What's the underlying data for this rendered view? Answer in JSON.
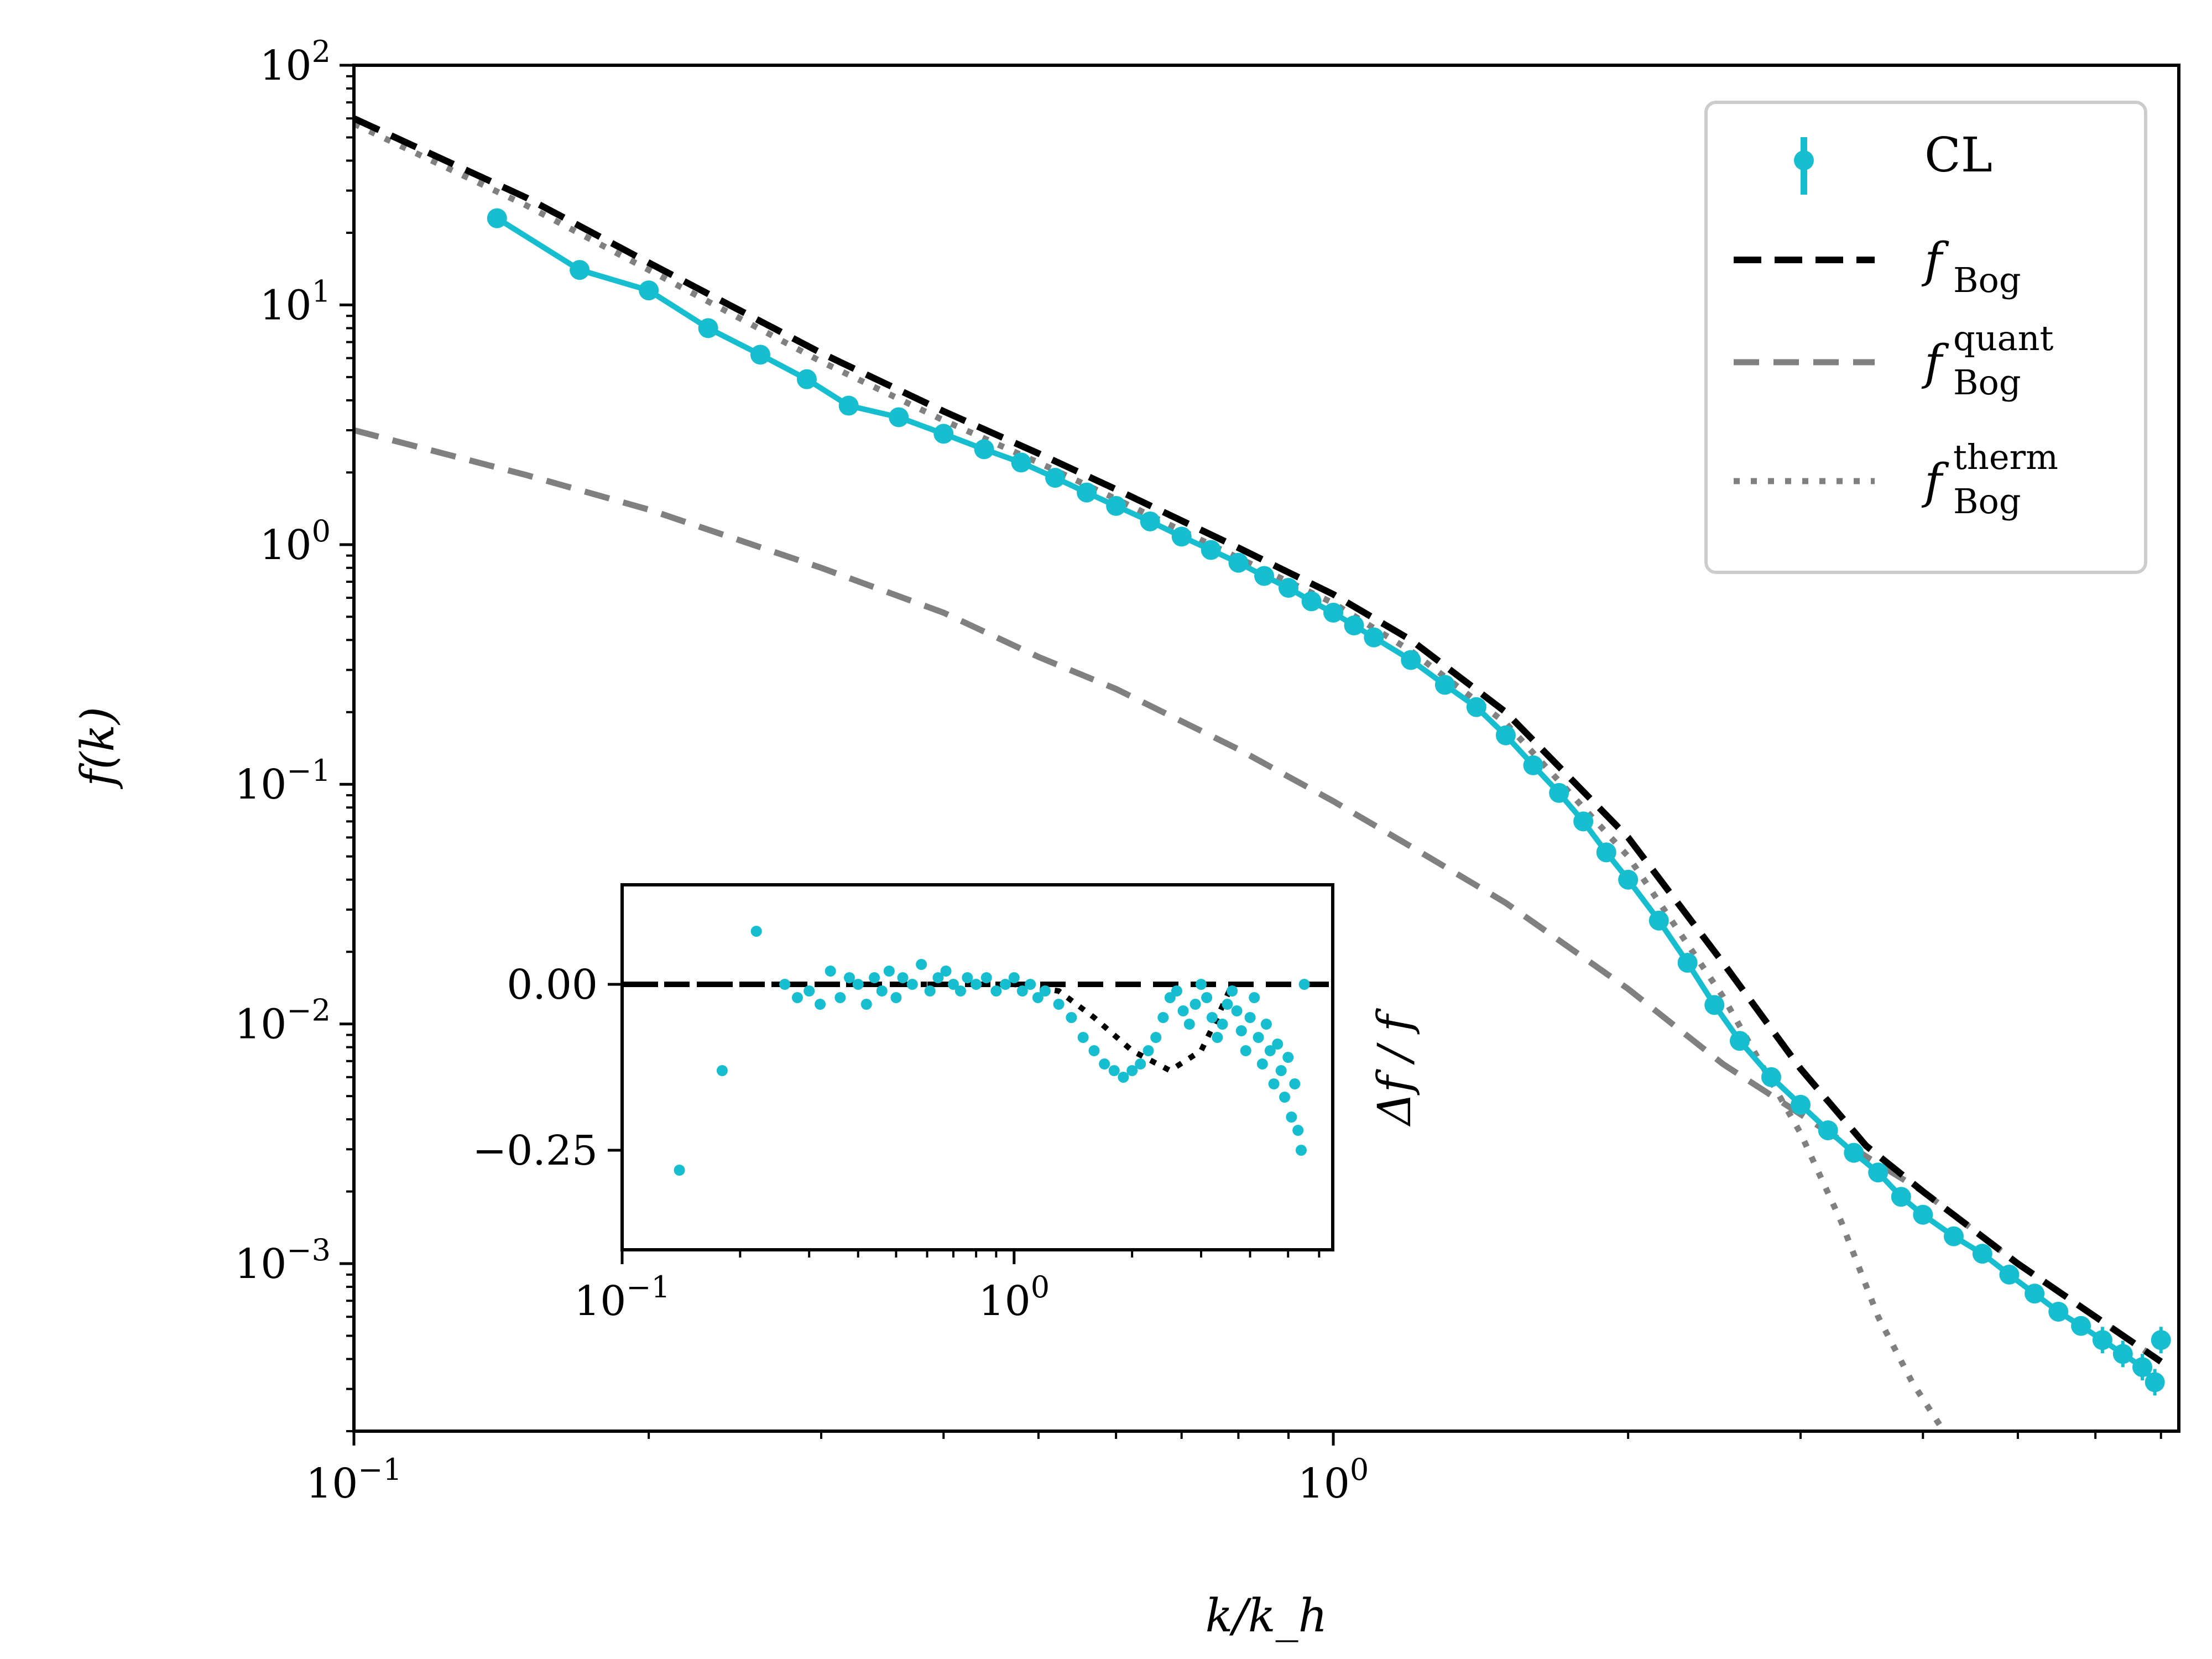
{
  "chart_data": {
    "type": "line",
    "title": "",
    "xlabel": "k/k_h",
    "ylabel": "f(k)",
    "x_scale": "log",
    "y_scale": "log",
    "xlim": [
      0.1,
      7.3
    ],
    "ylim": [
      0.0002,
      100
    ],
    "x_ticks": [
      {
        "value": 0.1,
        "base": "10",
        "exp": "−1"
      },
      {
        "value": 1,
        "base": "10",
        "exp": "0"
      }
    ],
    "y_ticks": [
      {
        "value": 100,
        "base": "10",
        "exp": "2"
      },
      {
        "value": 10,
        "base": "10",
        "exp": "1"
      },
      {
        "value": 1,
        "base": "10",
        "exp": "0"
      },
      {
        "value": 0.1,
        "base": "10",
        "exp": "−1"
      },
      {
        "value": 0.01,
        "base": "10",
        "exp": "−2"
      },
      {
        "value": 0.001,
        "base": "10",
        "exp": "−3"
      }
    ],
    "legend": {
      "placement": "top-right",
      "entries": [
        {
          "id": "cl",
          "label": "CL",
          "sup": "",
          "style": "errorbar-markers"
        },
        {
          "id": "bog",
          "label": "f",
          "sub": "Bog",
          "sup": "",
          "style": "dashed-black"
        },
        {
          "id": "quant",
          "label": "f",
          "sub": "Bog",
          "sup": "quant",
          "style": "dashed-gray"
        },
        {
          "id": "therm",
          "label": "f",
          "sub": "Bog",
          "sup": "therm",
          "style": "dotted-gray"
        }
      ]
    },
    "series": [
      {
        "name": "f_Bog",
        "color": "#000000",
        "x": [
          0.1,
          0.15,
          0.2,
          0.3,
          0.4,
          0.5,
          0.6,
          0.8,
          1.0,
          1.2,
          1.5,
          2.0,
          2.5,
          3.0,
          3.5,
          4.0,
          5.0,
          6.0,
          7.0
        ],
        "y": [
          60,
          28,
          15,
          6.3,
          3.6,
          2.4,
          1.7,
          0.97,
          0.62,
          0.4,
          0.2,
          0.06,
          0.018,
          0.0065,
          0.0031,
          0.002,
          0.001,
          0.0006,
          0.00039
        ]
      },
      {
        "name": "f_Bog^quant",
        "color": "#808080",
        "x": [
          0.1,
          0.15,
          0.2,
          0.3,
          0.4,
          0.5,
          0.6,
          0.8,
          1.0,
          1.2,
          1.5,
          2.0,
          2.5,
          3.0,
          3.5,
          4.0,
          5.0,
          6.0,
          7.0
        ],
        "y": [
          3.0,
          1.95,
          1.4,
          0.8,
          0.52,
          0.34,
          0.25,
          0.14,
          0.085,
          0.055,
          0.032,
          0.014,
          0.0068,
          0.0042,
          0.0028,
          0.002,
          0.001,
          0.0006,
          0.00039
        ]
      },
      {
        "name": "f_Bog^therm",
        "color": "#808080",
        "x": [
          0.1,
          0.15,
          0.2,
          0.3,
          0.4,
          0.5,
          0.6,
          0.8,
          1.0,
          1.2,
          1.5,
          2.0,
          2.5,
          3.0,
          3.3,
          3.6,
          3.9,
          4.2
        ],
        "y": [
          57,
          26,
          14,
          5.8,
          3.3,
          2.2,
          1.55,
          0.88,
          0.57,
          0.36,
          0.18,
          0.05,
          0.013,
          0.0035,
          0.0015,
          0.0006,
          0.00032,
          0.0002
        ]
      },
      {
        "name": "CL",
        "color": "#17becf",
        "x": [
          0.14,
          0.17,
          0.2,
          0.23,
          0.26,
          0.29,
          0.32,
          0.36,
          0.4,
          0.44,
          0.48,
          0.52,
          0.56,
          0.6,
          0.65,
          0.7,
          0.75,
          0.8,
          0.85,
          0.9,
          0.95,
          1.0,
          1.05,
          1.1,
          1.2,
          1.3,
          1.4,
          1.5,
          1.6,
          1.7,
          1.8,
          1.9,
          2.0,
          2.15,
          2.3,
          2.45,
          2.6,
          2.8,
          3.0,
          3.2,
          3.4,
          3.6,
          3.8,
          4.0,
          4.3,
          4.6,
          4.9,
          5.2,
          5.5,
          5.8,
          6.1,
          6.4,
          6.7,
          6.9,
          7.0
        ],
        "y": [
          23,
          14,
          11.5,
          8,
          6.2,
          4.9,
          3.8,
          3.4,
          2.9,
          2.5,
          2.2,
          1.9,
          1.65,
          1.45,
          1.25,
          1.08,
          0.95,
          0.84,
          0.74,
          0.66,
          0.58,
          0.52,
          0.46,
          0.41,
          0.33,
          0.26,
          0.21,
          0.16,
          0.12,
          0.092,
          0.07,
          0.052,
          0.04,
          0.027,
          0.018,
          0.012,
          0.0085,
          0.006,
          0.0046,
          0.0036,
          0.0029,
          0.0024,
          0.0019,
          0.0016,
          0.0013,
          0.0011,
          0.0009,
          0.00075,
          0.00063,
          0.00055,
          0.00048,
          0.00042,
          0.00037,
          0.00032,
          0.00048
        ]
      }
    ],
    "inset": {
      "ylabel": "Δf / f",
      "x_scale": "log",
      "xlim": [
        0.1,
        6.5
      ],
      "ylim": [
        -0.4,
        0.15
      ],
      "x_ticks": [
        {
          "value": 0.1,
          "base": "10",
          "exp": "−1"
        },
        {
          "value": 1,
          "base": "10",
          "exp": "0"
        }
      ],
      "y_ticks": [
        {
          "value": 0,
          "label": "0.00"
        },
        {
          "value": -0.25,
          "label": "−0.25"
        }
      ],
      "zero_line": 0,
      "curve": {
        "x": [
          0.1,
          0.5,
          1.0,
          1.3,
          1.6,
          2.0,
          2.5,
          3.0,
          3.3,
          3.6
        ],
        "y": [
          0,
          0,
          0,
          -0.01,
          -0.05,
          -0.1,
          -0.13,
          -0.1,
          -0.05,
          0
        ]
      },
      "points": {
        "x": [
          0.14,
          0.18,
          0.22,
          0.26,
          0.28,
          0.3,
          0.32,
          0.34,
          0.36,
          0.38,
          0.4,
          0.42,
          0.44,
          0.46,
          0.48,
          0.5,
          0.52,
          0.55,
          0.58,
          0.61,
          0.64,
          0.67,
          0.7,
          0.73,
          0.76,
          0.8,
          0.85,
          0.9,
          0.95,
          1.0,
          1.05,
          1.1,
          1.15,
          1.2,
          1.3,
          1.4,
          1.5,
          1.6,
          1.7,
          1.8,
          1.9,
          2.0,
          2.1,
          2.2,
          2.3,
          2.4,
          2.5,
          2.6,
          2.7,
          2.8,
          2.9,
          3.0,
          3.1,
          3.2,
          3.3,
          3.4,
          3.5,
          3.6,
          3.7,
          3.8,
          3.9,
          4.0,
          4.1,
          4.2,
          4.3,
          4.4,
          4.5,
          4.6,
          4.7,
          4.8,
          4.9,
          5.0,
          5.1,
          5.2,
          5.3,
          5.4,
          5.5
        ],
        "y": [
          -0.28,
          -0.13,
          0.08,
          0.0,
          -0.02,
          -0.01,
          -0.03,
          0.02,
          -0.02,
          0.01,
          0.0,
          -0.03,
          0.01,
          -0.01,
          0.02,
          -0.02,
          0.01,
          0.0,
          0.03,
          -0.01,
          0.01,
          0.02,
          0.0,
          -0.01,
          0.01,
          0.0,
          0.01,
          -0.01,
          0.0,
          0.01,
          -0.01,
          0.0,
          -0.02,
          -0.01,
          -0.03,
          -0.05,
          -0.08,
          -0.1,
          -0.12,
          -0.13,
          -0.14,
          -0.13,
          -0.12,
          -0.1,
          -0.08,
          -0.05,
          -0.02,
          -0.01,
          -0.04,
          -0.06,
          -0.03,
          0.0,
          -0.02,
          -0.05,
          -0.08,
          -0.06,
          -0.03,
          -0.01,
          -0.04,
          -0.07,
          -0.1,
          -0.05,
          -0.02,
          -0.08,
          -0.12,
          -0.06,
          -0.1,
          -0.15,
          -0.09,
          -0.13,
          -0.17,
          -0.11,
          -0.2,
          -0.15,
          -0.22,
          -0.25,
          0.0
        ]
      }
    }
  }
}
